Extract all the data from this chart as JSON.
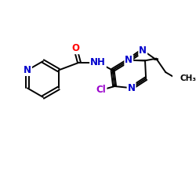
{
  "bg_color": "#ffffff",
  "atom_colors": {
    "N": "#0000cc",
    "O": "#ff0000",
    "Cl": "#9900cc",
    "C": "#000000"
  },
  "bond_color": "#000000",
  "bond_width": 1.4,
  "fig_size": [
    2.5,
    2.5
  ],
  "dpi": 100
}
